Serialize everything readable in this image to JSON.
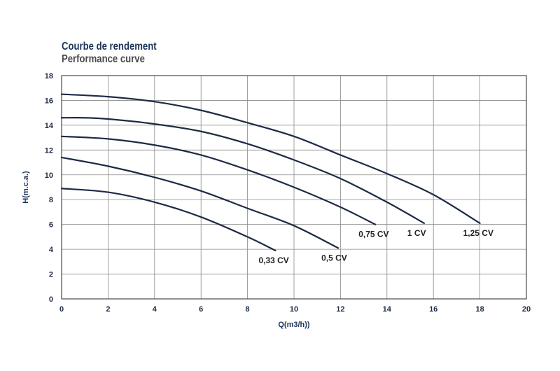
{
  "chart_data": {
    "type": "line",
    "title": "Courbe de rendement",
    "subtitle": "Performance curve",
    "xlabel": "Q(m3/h))",
    "ylabel": "H(m.c.a.)",
    "xlim": [
      0,
      20
    ],
    "ylim": [
      0,
      18
    ],
    "xticks": [
      0,
      2,
      4,
      6,
      8,
      10,
      12,
      14,
      16,
      18,
      20
    ],
    "yticks": [
      0,
      2,
      4,
      6,
      8,
      10,
      12,
      14,
      16,
      18
    ],
    "grid": true,
    "line_color": "#1d2b45",
    "series": [
      {
        "name": "0,33 CV",
        "x": [
          0,
          2,
          4,
          6,
          8,
          9.2
        ],
        "y": [
          8.9,
          8.6,
          7.8,
          6.6,
          5.0,
          3.9
        ]
      },
      {
        "name": "0,5 CV",
        "x": [
          0,
          2,
          4,
          6,
          8,
          10,
          11.9
        ],
        "y": [
          11.4,
          10.7,
          9.8,
          8.7,
          7.3,
          5.9,
          4.1
        ]
      },
      {
        "name": "0,75 CV",
        "x": [
          0,
          2,
          4,
          6,
          8,
          10,
          12,
          13.5
        ],
        "y": [
          13.1,
          12.9,
          12.4,
          11.6,
          10.4,
          9.0,
          7.4,
          6.0
        ]
      },
      {
        "name": "1 CV",
        "x": [
          0,
          1,
          2,
          4,
          6,
          8,
          10,
          12,
          14,
          15.6
        ],
        "y": [
          14.6,
          14.6,
          14.5,
          14.1,
          13.5,
          12.5,
          11.2,
          9.7,
          7.8,
          6.1
        ]
      },
      {
        "name": "1,25 CV",
        "x": [
          0,
          2,
          4,
          6,
          8,
          10,
          12,
          14,
          16,
          18
        ],
        "y": [
          16.5,
          16.3,
          15.9,
          15.2,
          14.2,
          13.1,
          11.6,
          10.1,
          8.4,
          6.1
        ]
      }
    ]
  }
}
